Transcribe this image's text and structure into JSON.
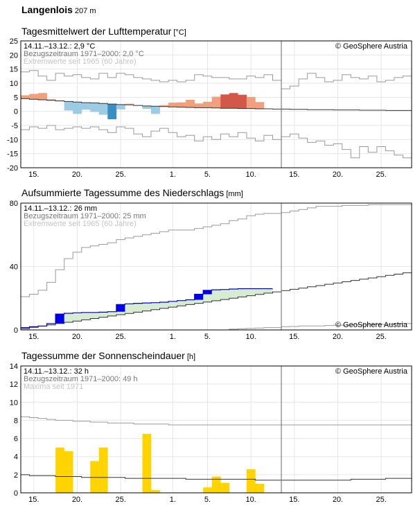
{
  "station": {
    "name": "Langenlois",
    "elevation": "207 m"
  },
  "chart_data": [
    {
      "type": "bar",
      "title": "Tagesmittelwert der Lufttemperatur",
      "unit": "[°C]",
      "info": [
        "14.11.–13.12.: 2,9 °C",
        "Bezugszeitraum 1971–2000: 2,0 °C",
        "Extremwerte seit 1965 (60 Jahre)"
      ],
      "copyright": "© GeoSphere Austria",
      "x_tick_labels": [
        "15.",
        "20.",
        "25.",
        "1.",
        "5.",
        "10.",
        "15.",
        "20.",
        "25."
      ],
      "x_tick_days": [
        1,
        6,
        11,
        17,
        21,
        26,
        31,
        36,
        41
      ],
      "yticks": [
        -20,
        -15,
        -10,
        -5,
        0,
        5,
        10,
        15,
        20,
        25
      ],
      "ylim": [
        -20,
        25
      ],
      "today_day": 30,
      "series": [
        {
          "role": "observed",
          "values": [
            5.7,
            6.2,
            6.5,
            4.3,
            3.9,
            0.3,
            -0.9,
            0.6,
            -0.2,
            -1.2,
            -2.8,
            0.7,
            2.7,
            2.1,
            0.9,
            -0.9,
            2.2,
            3.1,
            3.2,
            4.1,
            2.8,
            3.4,
            5.2,
            6.0,
            6.5,
            5.9,
            5.1,
            3.3
          ]
        },
        {
          "role": "climate-mean",
          "values": [
            4.5,
            4.3,
            4.1,
            3.9,
            3.7,
            3.5,
            3.3,
            3.1,
            3.0,
            2.8,
            2.6,
            2.4,
            2.3,
            2.1,
            1.9,
            1.8,
            1.7,
            1.6,
            1.5,
            1.4,
            1.3,
            1.3,
            1.2,
            1.1,
            1.1,
            1.0,
            1.0,
            0.9,
            0.9,
            0.8,
            0.8,
            0.7,
            0.7,
            0.6,
            0.6,
            0.6,
            0.5,
            0.5,
            0.5,
            0.4,
            0.4,
            0.4,
            0.3,
            0.3,
            0.3
          ]
        },
        {
          "role": "record-max",
          "values": [
            14.0,
            14.5,
            12.5,
            11.0,
            13.5,
            12.5,
            13.0,
            12.0,
            11.5,
            13.5,
            12.0,
            13.5,
            13.0,
            12.0,
            11.5,
            11.0,
            10.5,
            11.0,
            10.5,
            11.0,
            13.0,
            12.5,
            12.0,
            12.0,
            11.5,
            11.5,
            12.5,
            12.0,
            13.0,
            11.0,
            8.0,
            9.0,
            11.5,
            13.5,
            12.0,
            10.5,
            11.0,
            13.0,
            12.0,
            11.5,
            12.5,
            10.5,
            11.0,
            12.0,
            12.5
          ]
        },
        {
          "role": "record-min",
          "values": [
            -6.5,
            -5.5,
            -6.0,
            -5.0,
            -6.5,
            -6.0,
            -5.5,
            -6.0,
            -5.5,
            -6.5,
            -7.5,
            -5.5,
            -6.0,
            -8.0,
            -9.0,
            -7.0,
            -6.0,
            -7.5,
            -9.0,
            -8.5,
            -10.5,
            -9.0,
            -10.0,
            -8.0,
            -9.0,
            -7.5,
            -9.5,
            -10.5,
            -8.5,
            -10.0,
            -9.0,
            -8.0,
            -9.5,
            -11.0,
            -10.5,
            -12.0,
            -11.5,
            -13.5,
            -16.5,
            -12.5,
            -14.5,
            -12.5,
            -14.0,
            -15.5,
            -16.5
          ]
        }
      ]
    },
    {
      "type": "area",
      "title": "Aufsummierte Tagessumme des Niederschlags",
      "unit": "[mm]",
      "info": [
        "14.11.–13.12.: 26 mm",
        "Bezugszeitraum 1971–2000: 25 mm",
        "Extremwerte seit 1965 (60 Jahre)"
      ],
      "copyright": "© GeoSphere Austria",
      "x_tick_labels": [
        "15.",
        "20.",
        "25.",
        "1.",
        "5.",
        "10.",
        "15.",
        "20.",
        "25."
      ],
      "x_tick_days": [
        1,
        6,
        11,
        17,
        21,
        26,
        31,
        36,
        41
      ],
      "yticks": [
        0,
        40,
        80
      ],
      "ylim": [
        0,
        80
      ],
      "today_day": 30,
      "series": [
        {
          "role": "observed-cumulative",
          "values": [
            1.5,
            2.0,
            2.5,
            4.0,
            10.0,
            10.5,
            10.8,
            11.0,
            11.0,
            11.2,
            11.5,
            16.0,
            16.5,
            16.8,
            17.0,
            17.2,
            17.5,
            18.0,
            18.5,
            19.0,
            22.5,
            25.0,
            25.3,
            25.5,
            25.8,
            26.0,
            26.0,
            26.0,
            26.0
          ]
        },
        {
          "role": "climate-cumulative",
          "values": [
            0.8,
            1.6,
            2.4,
            3.2,
            4.0,
            4.8,
            5.6,
            6.4,
            7.2,
            8.0,
            8.8,
            9.6,
            10.4,
            11.2,
            12.0,
            12.8,
            13.6,
            14.4,
            15.2,
            16.0,
            16.8,
            17.6,
            18.4,
            19.2,
            20.0,
            20.8,
            21.6,
            22.4,
            23.2,
            24.0,
            24.8,
            25.6,
            26.4,
            27.2,
            28.0,
            28.8,
            29.6,
            30.4,
            31.2,
            32.0,
            32.8,
            33.6,
            34.4,
            35.2,
            36.0
          ]
        },
        {
          "role": "record-max-cumulative",
          "values": [
            21.0,
            22.5,
            25.0,
            30.0,
            38.0,
            45.0,
            49.0,
            52.0,
            53.0,
            54.0,
            55.0,
            57.0,
            58.0,
            59.0,
            60.0,
            61.0,
            62.0,
            63.0,
            63.0,
            63.0,
            64.0,
            65.0,
            66.0,
            67.0,
            69.0,
            70.0,
            72.0,
            73.0,
            73.5,
            73.5,
            74.0,
            75.0,
            76.0,
            77.0,
            78.0,
            78.0,
            78.0,
            78.5,
            78.5,
            78.5,
            79.0,
            79.0,
            79.0,
            79.0,
            79.0
          ]
        },
        {
          "role": "record-min-cumulative",
          "values": [
            0.0,
            0.0,
            0.0,
            0.0,
            0.0,
            0.0,
            0.0,
            0.0,
            0.0,
            0.0,
            0.0,
            0.0,
            0.0,
            0.0,
            0.0,
            0.0,
            0.0,
            0.0,
            0.0,
            0.0,
            0.0,
            0.0,
            0.0,
            0.0,
            0.5,
            0.8,
            1.0,
            1.2,
            1.5,
            1.5,
            2.0,
            2.2,
            2.5,
            2.5,
            2.5,
            2.8,
            3.0,
            3.0,
            3.2,
            3.2,
            3.5,
            3.5,
            3.5,
            3.8,
            4.0
          ]
        }
      ]
    },
    {
      "type": "bar",
      "title": "Tagessumme der Sonnenscheindauer",
      "unit": "[h]",
      "info": [
        "14.11.–13.12.: 32 h",
        "Bezugszeitraum 1971–2000: 49 h",
        "Maxima seit 1971"
      ],
      "copyright": "© GeoSphere Austria",
      "x_tick_labels": [
        "15.",
        "20.",
        "25.",
        "1.",
        "5.",
        "10.",
        "15.",
        "20.",
        "25."
      ],
      "x_tick_days": [
        1,
        6,
        11,
        17,
        21,
        26,
        31,
        36,
        41
      ],
      "yticks": [
        0,
        2,
        4,
        6,
        8,
        10,
        12,
        14
      ],
      "ylim": [
        0,
        14
      ],
      "today_day": 30,
      "series": [
        {
          "role": "observed",
          "values": [
            0,
            0,
            0,
            0,
            5.0,
            4.6,
            0,
            0,
            3.5,
            5.0,
            0,
            0,
            0,
            0,
            6.5,
            0.3,
            0,
            0,
            0,
            0,
            0,
            0.6,
            1.8,
            1.1,
            0,
            0,
            2.6,
            1.0,
            0
          ]
        },
        {
          "role": "climate-mean",
          "values": [
            2.0,
            1.9,
            1.9,
            1.9,
            1.8,
            1.8,
            1.8,
            1.7,
            1.7,
            1.7,
            1.7,
            1.7,
            1.6,
            1.6,
            1.6,
            1.6,
            1.6,
            1.6,
            1.6,
            1.5,
            1.5,
            1.5,
            1.5,
            1.5,
            1.5,
            1.5,
            1.5,
            1.4,
            1.4,
            1.4,
            1.4,
            1.4,
            1.4,
            1.4,
            1.4,
            1.4,
            1.4,
            1.4,
            1.5,
            1.5,
            1.5,
            1.5,
            1.6,
            1.6,
            1.6
          ]
        },
        {
          "role": "record-max",
          "values": [
            8.4,
            8.3,
            8.2,
            8.1,
            8.0,
            8.0,
            7.9,
            7.9,
            7.8,
            7.8,
            7.7,
            7.7,
            7.7,
            7.6,
            7.6,
            7.6,
            7.6,
            7.5,
            7.5,
            7.5,
            7.5,
            7.5,
            7.5,
            7.5,
            7.5,
            7.5,
            7.5,
            7.5,
            7.5,
            7.5,
            7.5,
            7.5,
            7.5,
            7.5,
            7.5,
            7.5,
            7.5,
            7.5,
            7.5,
            7.5,
            7.5,
            7.5,
            7.5,
            7.5,
            7.5
          ]
        }
      ]
    }
  ]
}
